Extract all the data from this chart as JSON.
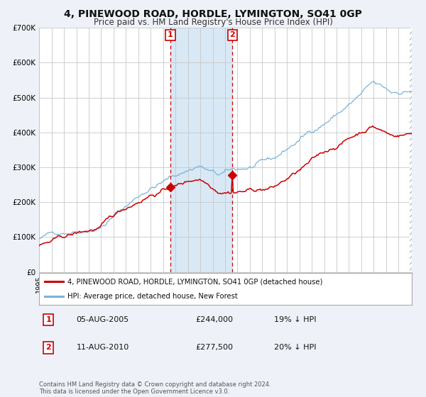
{
  "title": "4, PINEWOOD ROAD, HORDLE, LYMINGTON, SO41 0GP",
  "subtitle": "Price paid vs. HM Land Registry's House Price Index (HPI)",
  "ylim": [
    0,
    700000
  ],
  "yticks": [
    0,
    100000,
    200000,
    300000,
    400000,
    500000,
    600000,
    700000
  ],
  "ytick_labels": [
    "£0",
    "£100K",
    "£200K",
    "£300K",
    "£400K",
    "£500K",
    "£600K",
    "£700K"
  ],
  "hpi_color": "#7ab4d8",
  "price_color": "#cc0000",
  "background_color": "#eef2f8",
  "plot_bg_color": "#ffffff",
  "grid_color": "#c8c8c8",
  "shade_color": "#d8e8f5",
  "legend_line1": "4, PINEWOOD ROAD, HORDLE, LYMINGTON, SO41 0GP (detached house)",
  "legend_line2": "HPI: Average price, detached house, New Forest",
  "footnote": "Contains HM Land Registry data © Crown copyright and database right 2024.\nThis data is licensed under the Open Government Licence v3.0.",
  "title_fontsize": 10,
  "subtitle_fontsize": 8.5
}
